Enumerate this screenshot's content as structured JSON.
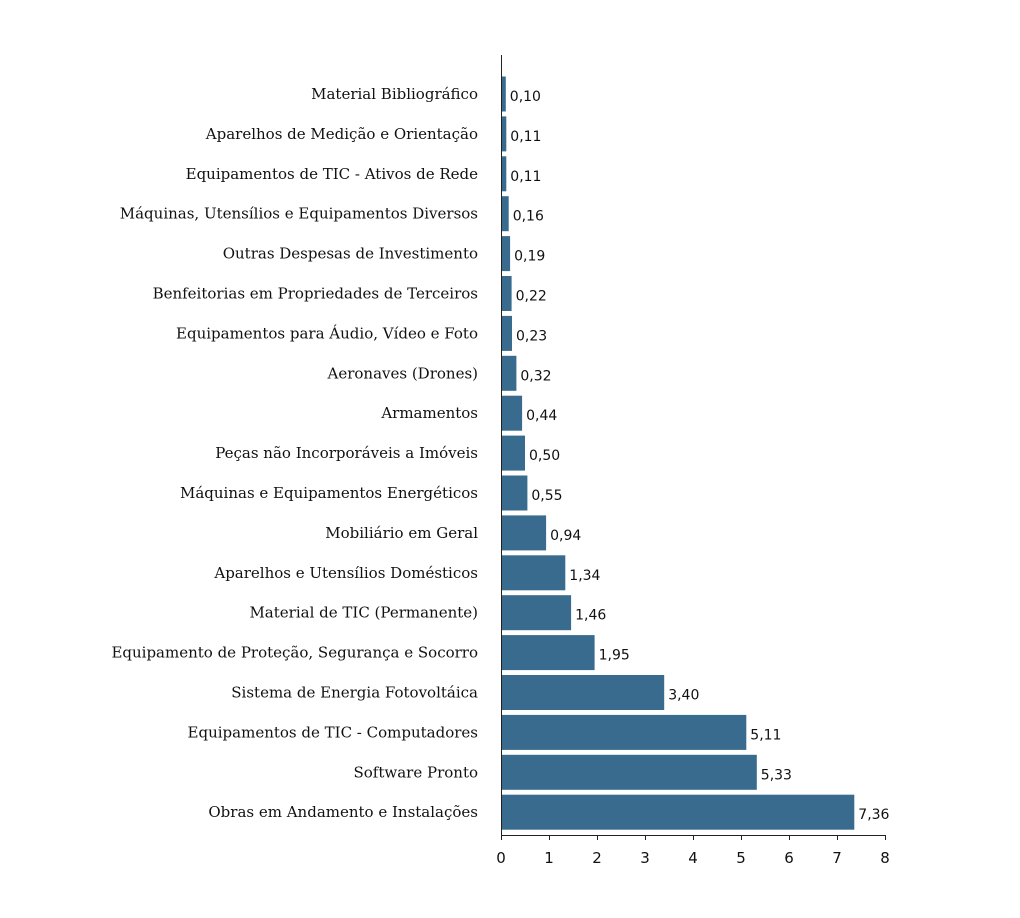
{
  "chart_data": {
    "type": "bar",
    "orientation": "horizontal",
    "categories": [
      "Material Bibliográfico",
      "Aparelhos de Medição e Orientação",
      "Equipamentos de TIC - Ativos de Rede",
      "Máquinas, Utensílios e Equipamentos Diversos",
      "Outras Despesas de Investimento",
      "Benfeitorias em Propriedades de Terceiros",
      "Equipamentos para Áudio, Vídeo e Foto",
      "Aeronaves (Drones)",
      "Armamentos",
      "Peças não Incorporáveis a Imóveis",
      "Máquinas e Equipamentos Energéticos",
      "Mobiliário em Geral",
      "Aparelhos e Utensílios Domésticos",
      "Material de TIC (Permanente)",
      "Equipamento de Proteção, Segurança e Socorro",
      "Sistema de Energia Fotovoltáica",
      "Equipamentos de TIC - Computadores",
      "Software Pronto",
      "Obras em Andamento e Instalações"
    ],
    "values": [
      0.1,
      0.11,
      0.11,
      0.16,
      0.19,
      0.22,
      0.23,
      0.32,
      0.44,
      0.5,
      0.55,
      0.94,
      1.34,
      1.46,
      1.95,
      3.4,
      5.11,
      5.33,
      7.36
    ],
    "value_labels": [
      "0,10",
      "0,11",
      "0,11",
      "0,16",
      "0,19",
      "0,22",
      "0,23",
      "0,32",
      "0,44",
      "0,50",
      "0,55",
      "0,94",
      "1,34",
      "1,46",
      "1,95",
      "3,40",
      "5,11",
      "5,33",
      "7,36"
    ],
    "xlim": [
      0,
      8
    ],
    "xticks": [
      "0",
      "1",
      "2",
      "3",
      "4",
      "5",
      "6",
      "7",
      "8"
    ],
    "title": "",
    "xlabel": "",
    "ylabel": "",
    "grid": false,
    "bar_color": "#386b8d"
  }
}
